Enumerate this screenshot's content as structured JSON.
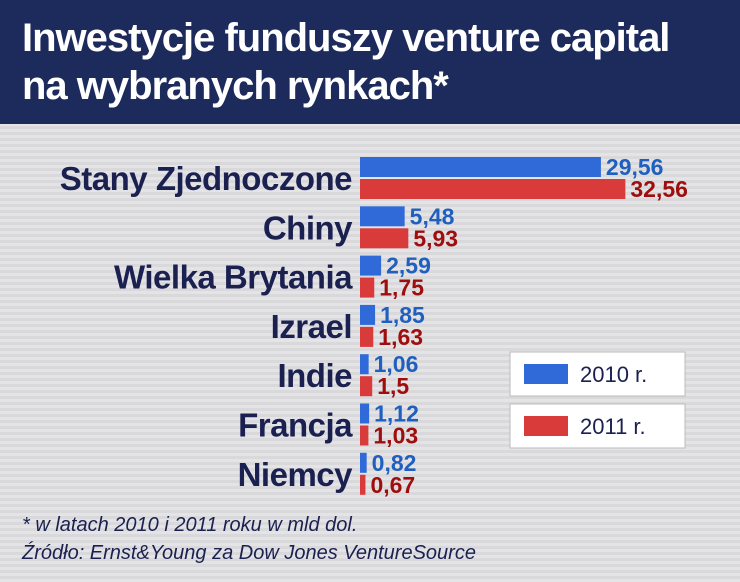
{
  "chart_data": {
    "type": "bar",
    "orientation": "horizontal",
    "title": "Inwestycje funduszy venture capital na wybranych rynkach*",
    "categories": [
      "Stany Zjednoczone",
      "Chiny",
      "Wielka Brytania",
      "Izrael",
      "Indie",
      "Francja",
      "Niemcy"
    ],
    "series": [
      {
        "name": "2010 r.",
        "color": "#2f6ad8",
        "label_color": "#1f5fbf",
        "values": [
          29.56,
          5.48,
          2.59,
          1.85,
          1.06,
          1.12,
          0.82
        ],
        "value_labels": [
          "29,56",
          "5,48",
          "2,59",
          "1,85",
          "1,06",
          "1,12",
          "0,82"
        ]
      },
      {
        "name": "2011 r.",
        "color": "#d93a3a",
        "label_color": "#a00d0d",
        "values": [
          32.56,
          5.93,
          1.75,
          1.63,
          1.5,
          1.03,
          0.67
        ],
        "value_labels": [
          "32,56",
          "5,93",
          "1,75",
          "1,63",
          "1,5",
          "1,03",
          "0,67"
        ]
      }
    ],
    "xlim": [
      0,
      40
    ],
    "footnote": "* w latach 2010 i 2011 roku w mld dol.",
    "source": "Źródło: Ernst&Young za Dow Jones VentureSource"
  }
}
